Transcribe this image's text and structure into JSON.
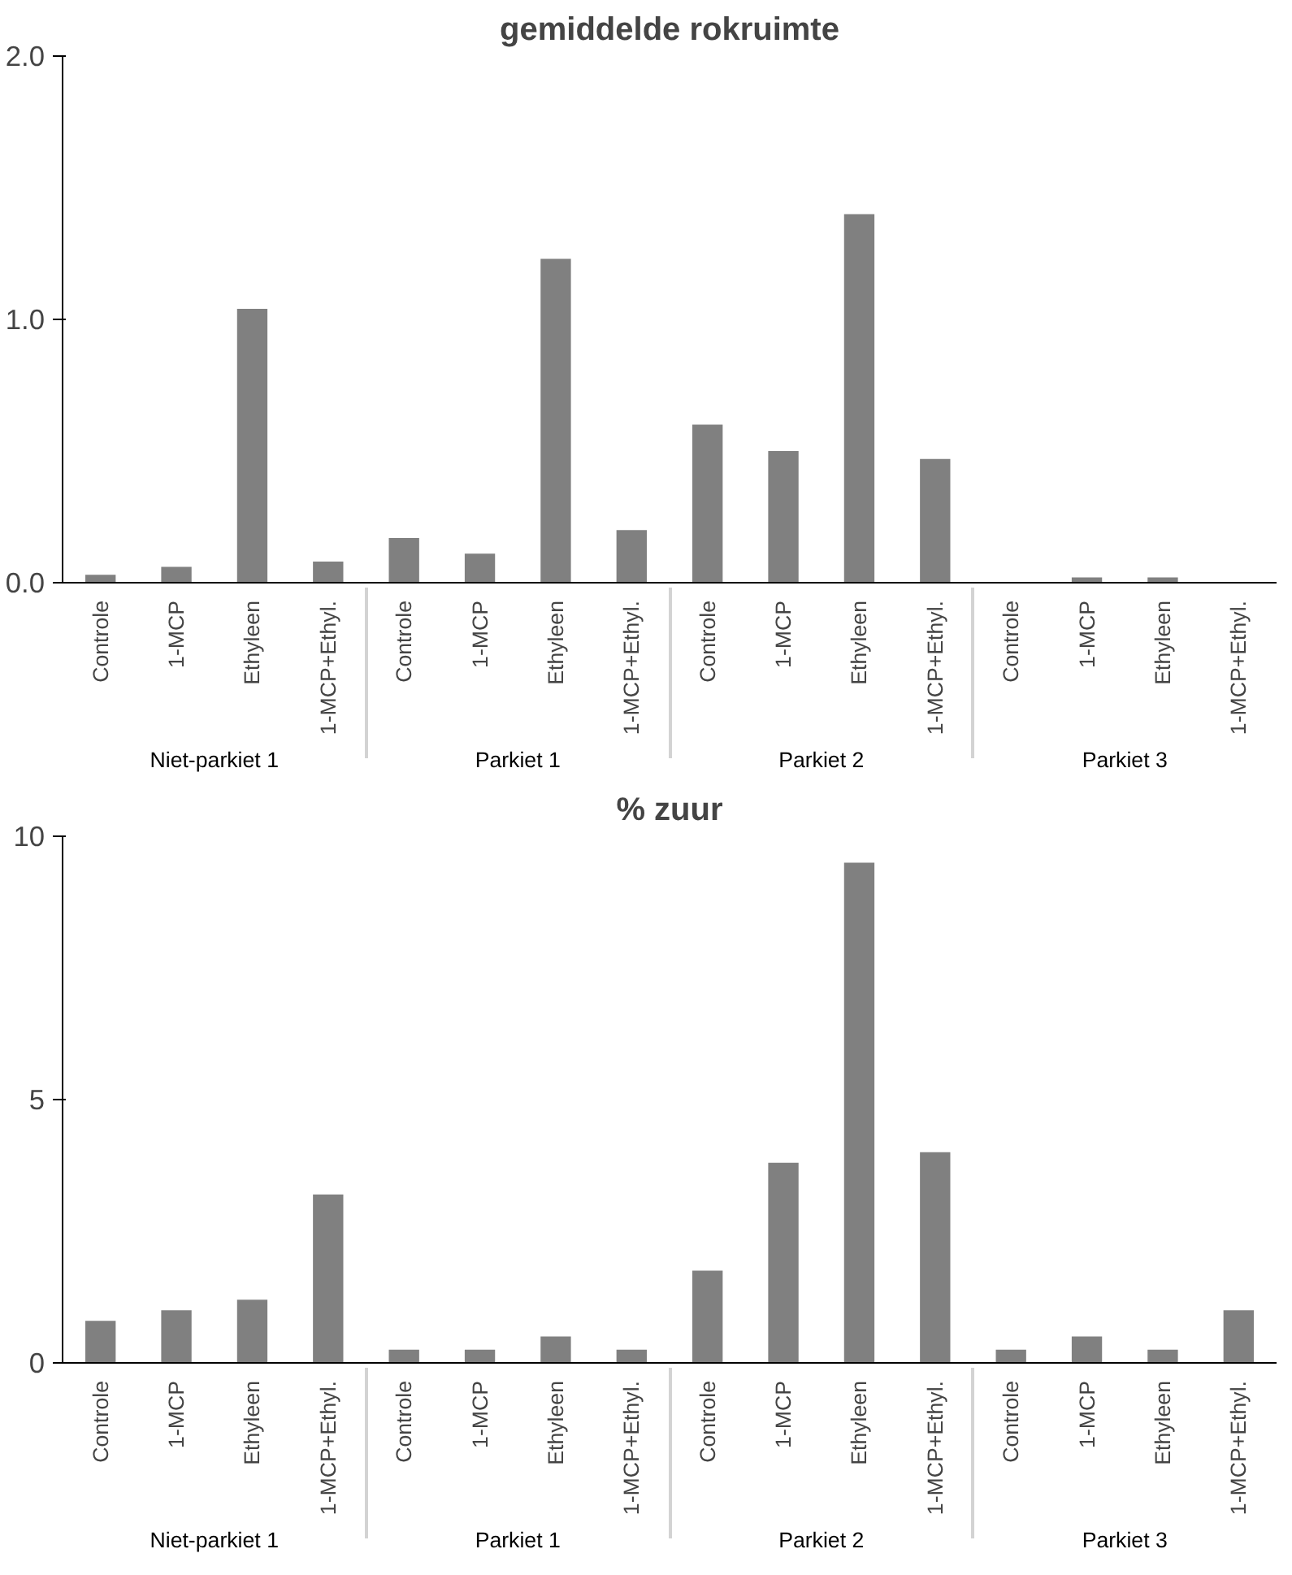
{
  "chart_data": [
    {
      "type": "bar",
      "title": "gemiddelde rokruimte",
      "categories": [
        "Controle",
        "1-MCP",
        "Ethyleen",
        "1-MCP+Ethyl.",
        "Controle",
        "1-MCP",
        "Ethyleen",
        "1-MCP+Ethyl.",
        "Controle",
        "1-MCP",
        "Ethyleen",
        "1-MCP+Ethyl.",
        "Controle",
        "1-MCP",
        "Ethyleen",
        "1-MCP+Ethyl."
      ],
      "values": [
        0.03,
        0.06,
        1.04,
        0.08,
        0.17,
        0.11,
        1.23,
        0.2,
        0.6,
        0.5,
        1.4,
        0.47,
        0,
        0.02,
        0.02,
        0
      ],
      "color": "#808080",
      "ylim": [
        0,
        2
      ],
      "yticks": [
        {
          "value": 0,
          "label": "0.0"
        },
        {
          "value": 1,
          "label": "1.0"
        },
        {
          "value": 2,
          "label": "2.0"
        }
      ],
      "grid": false,
      "annotations": [
        "Niet-parkiet 1",
        "Parkiet 1",
        "Parkiet 2",
        "Parkiet 3"
      ]
    },
    {
      "type": "bar",
      "title": "% zuur",
      "categories": [
        "Controle",
        "1-MCP",
        "Ethyleen",
        "1-MCP+Ethyl.",
        "Controle",
        "1-MCP",
        "Ethyleen",
        "1-MCP+Ethyl.",
        "Controle",
        "1-MCP",
        "Ethyleen",
        "1-MCP+Ethyl.",
        "Controle",
        "1-MCP",
        "Ethyleen",
        "1-MCP+Ethyl."
      ],
      "values": [
        0.8,
        1.0,
        1.2,
        3.2,
        0.25,
        0.25,
        0.5,
        0.25,
        1.75,
        3.8,
        9.5,
        4.0,
        0.25,
        0.5,
        0.25,
        1.0
      ],
      "color": "#808080",
      "ylim": [
        0,
        10
      ],
      "yticks": [
        0,
        5,
        10
      ],
      "grid": false,
      "annotations": [
        "Niet-parkiet 1",
        "Parkiet 1",
        "Parkiet 2",
        "Parkiet 3"
      ]
    }
  ]
}
